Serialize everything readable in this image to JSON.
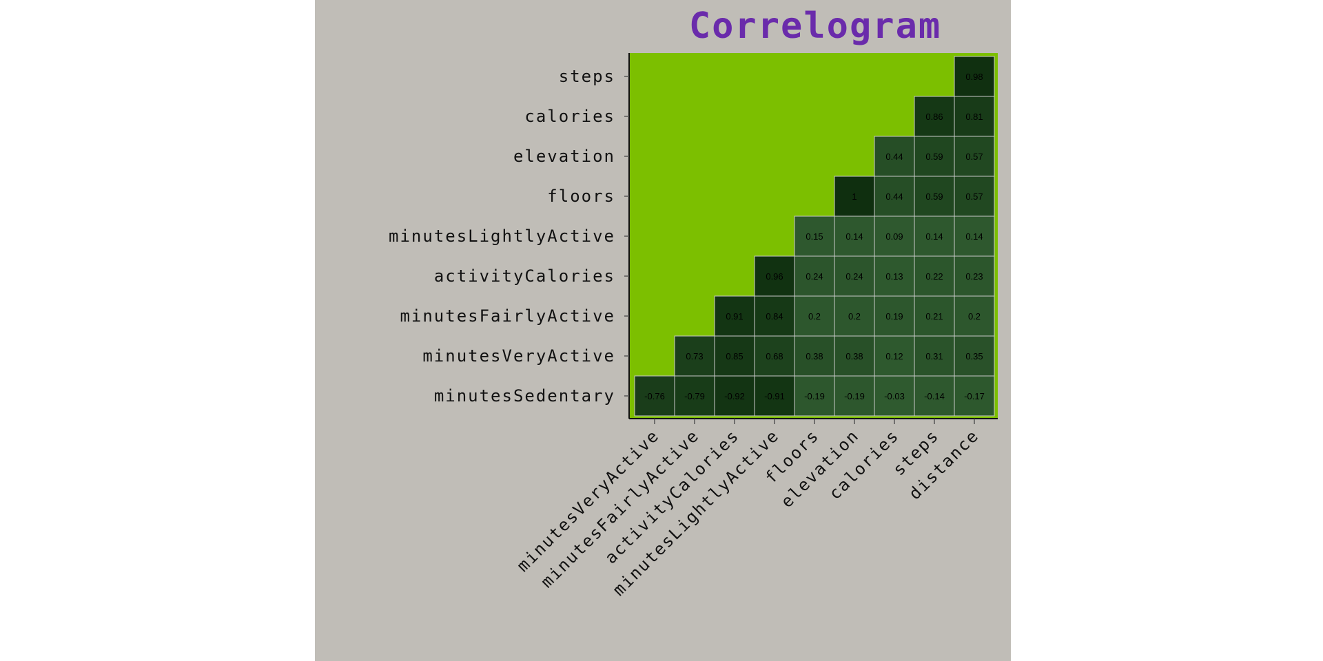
{
  "colors": {
    "panel_bg": "#c0bdb7",
    "plot_bg": "#7cbf00",
    "title": "#6a2bab",
    "axis_text": "#111111",
    "cell_text": "#000000",
    "cell_border": "#c8c8c8",
    "low_abs": "#2f5a2f",
    "high_abs": "#0f2f0f"
  },
  "chart_data": {
    "type": "heatmap",
    "title": "Correlogram",
    "xlabel": "",
    "ylabel": "",
    "x_categories": [
      "minutesVeryActive",
      "minutesFairlyActive",
      "activityCalories",
      "minutesLightlyActive",
      "floors",
      "elevation",
      "calories",
      "steps",
      "distance"
    ],
    "y_categories": [
      "minutesSedentary",
      "minutesVeryActive",
      "minutesFairlyActive",
      "activityCalories",
      "minutesLightlyActive",
      "floors",
      "elevation",
      "calories",
      "steps"
    ],
    "values": [
      [
        -0.76,
        -0.79,
        -0.92,
        -0.91,
        -0.19,
        -0.19,
        -0.03,
        -0.14,
        -0.17
      ],
      [
        null,
        0.73,
        0.85,
        0.68,
        0.38,
        0.38,
        0.12,
        0.31,
        0.35
      ],
      [
        null,
        null,
        0.91,
        0.84,
        0.2,
        0.2,
        0.19,
        0.21,
        0.2
      ],
      [
        null,
        null,
        null,
        0.96,
        0.24,
        0.24,
        0.13,
        0.22,
        0.23
      ],
      [
        null,
        null,
        null,
        null,
        0.15,
        0.14,
        0.09,
        0.14,
        0.14
      ],
      [
        null,
        null,
        null,
        null,
        null,
        1,
        0.44,
        0.59,
        0.57
      ],
      [
        null,
        null,
        null,
        null,
        null,
        null,
        0.44,
        0.59,
        0.57
      ],
      [
        null,
        null,
        null,
        null,
        null,
        null,
        null,
        0.86,
        0.81
      ],
      [
        null,
        null,
        null,
        null,
        null,
        null,
        null,
        null,
        0.98
      ]
    ],
    "grid": false,
    "legend": "none"
  }
}
